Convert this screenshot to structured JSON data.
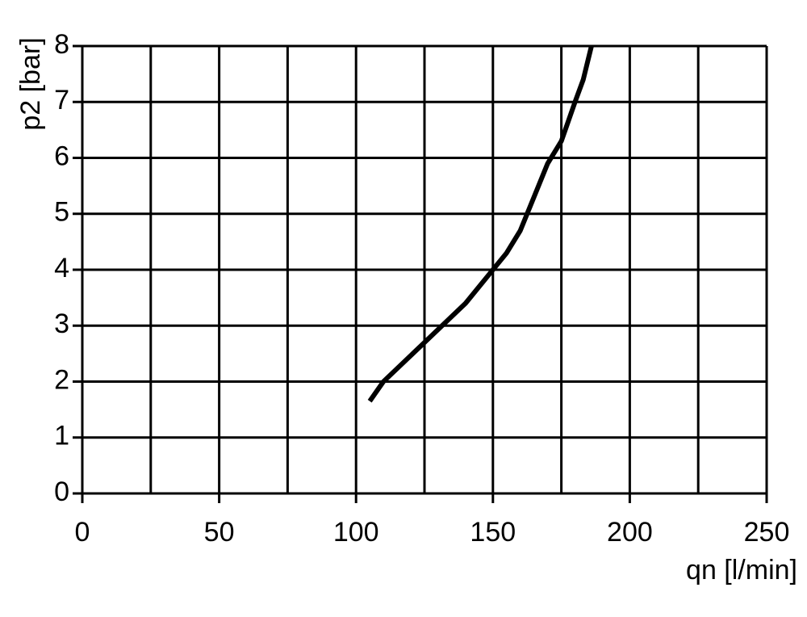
{
  "chart_data": {
    "type": "line",
    "x_label": "qn [l/min]",
    "y_label": "p2 [bar]",
    "xlim": [
      0,
      250
    ],
    "ylim": [
      0,
      8
    ],
    "xticks": [
      0,
      50,
      100,
      150,
      200,
      250
    ],
    "xminor": [
      25,
      75,
      125,
      175,
      225
    ],
    "yticks": [
      0,
      1,
      2,
      3,
      4,
      5,
      6,
      7,
      8
    ],
    "grid": true,
    "series": [
      {
        "color": "#000000",
        "x": [
          105,
          110,
          125,
          140,
          150,
          155,
          160,
          165,
          170,
          175,
          180,
          183,
          186
        ],
        "values": [
          1.65,
          2.0,
          2.7,
          3.4,
          4.0,
          4.3,
          4.7,
          5.3,
          5.9,
          6.3,
          7.0,
          7.4,
          8.0
        ]
      }
    ]
  }
}
